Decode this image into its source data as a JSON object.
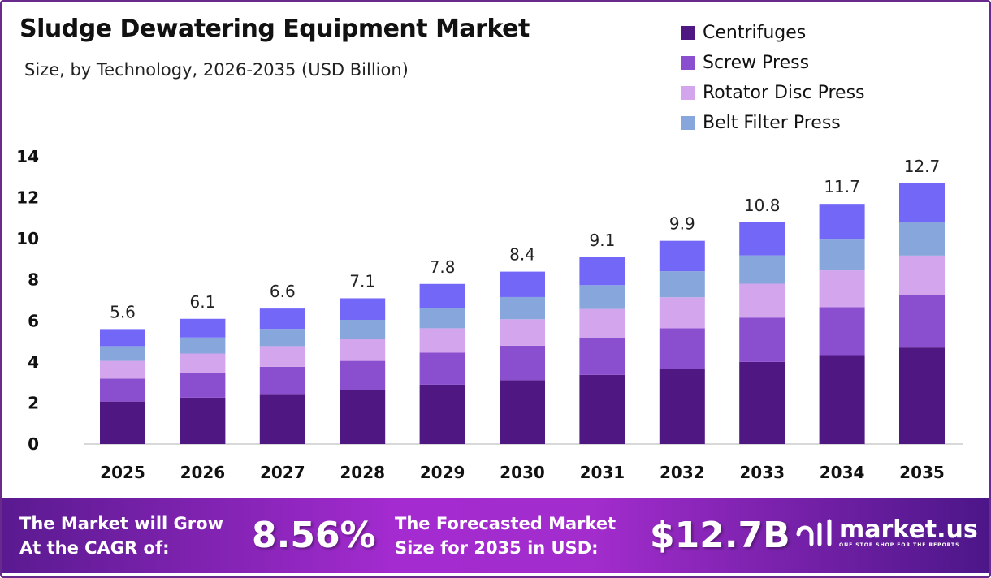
{
  "chart_data": {
    "type": "bar",
    "stacked": true,
    "title": "Sludge Dewatering Equipment Market",
    "subtitle": "Size, by Technology, 2026-2035 (USD Billion)",
    "categories": [
      "2025",
      "2026",
      "2027",
      "2028",
      "2029",
      "2030",
      "2031",
      "2032",
      "2033",
      "2034",
      "2035"
    ],
    "series": [
      {
        "name": "Centrifuges",
        "color": "#4f1782",
        "values": [
          2.07,
          2.26,
          2.44,
          2.63,
          2.89,
          3.11,
          3.37,
          3.66,
          4.0,
          4.33,
          4.7
        ]
      },
      {
        "name": "Screw Press",
        "color": "#8a4fcf",
        "values": [
          1.12,
          1.22,
          1.32,
          1.42,
          1.56,
          1.68,
          1.82,
          1.98,
          2.16,
          2.34,
          2.54
        ]
      },
      {
        "name": "Rotator Disc Press",
        "color": "#d3a5ec",
        "values": [
          0.86,
          0.93,
          1.01,
          1.09,
          1.19,
          1.29,
          1.39,
          1.51,
          1.65,
          1.79,
          1.94
        ]
      },
      {
        "name": "Belt Filter Press",
        "color": "#87a6dc",
        "values": [
          0.72,
          0.78,
          0.84,
          0.91,
          1.0,
          1.08,
          1.16,
          1.27,
          1.38,
          1.5,
          1.63
        ]
      },
      {
        "color": "#7267f7",
        "values": [
          0.83,
          0.91,
          0.99,
          1.05,
          1.16,
          1.24,
          1.36,
          1.48,
          1.61,
          1.74,
          1.89
        ]
      }
    ],
    "totals": [
      "5.6",
      "6.1",
      "6.6",
      "7.1",
      "7.8",
      "8.4",
      "9.1",
      "9.9",
      "10.8",
      "11.7",
      "12.7"
    ],
    "yticks": [
      "0",
      "2",
      "4",
      "6",
      "8",
      "10",
      "12",
      "14"
    ],
    "ylim": [
      0,
      14
    ],
    "grid": false,
    "legend_position": "top-right"
  },
  "banner": {
    "cagr_label_1": "The Market will Grow",
    "cagr_label_2": "At the CAGR of:",
    "cagr_value": "8.56%",
    "size_label_1": "The Forecasted Market",
    "size_label_2": "Size for 2035 in USD:",
    "size_value": "$12.7B",
    "logo_name": "market.us",
    "logo_tagline": "ONE STOP SHOP FOR THE REPORTS"
  }
}
